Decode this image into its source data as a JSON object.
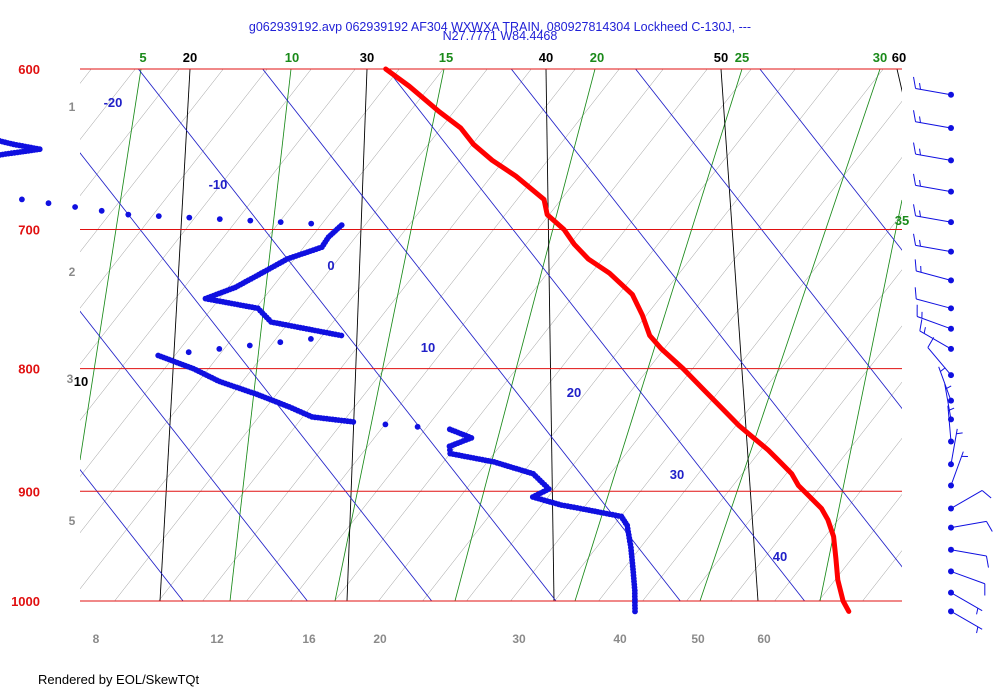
{
  "header": {
    "title_line1": "g062939192.avp 062939192 AF304 WXWXA TRAIN, 080927814304 Lockheed C-130J, ---",
    "title_line2": "N27.7771 W84.4468"
  },
  "footer": {
    "text": "Rendered by EOL/SkewTQt"
  },
  "colors": {
    "pressure_lines": "#e01010",
    "isotherms": "#2020c8",
    "dry_adiabats": "#000000",
    "moist_adiabats": "#1a8a1a",
    "mixing_ratio": "#8a8a8a",
    "temperature_trace": "#ff0000",
    "dewpoint_trace": "#1010e0",
    "wind_barbs": "#1010e0"
  },
  "chart_data": {
    "type": "skew-t",
    "pressure_levels": [
      "600",
      "700",
      "800",
      "900",
      "1000"
    ],
    "isotherm_labels": [
      "-20",
      "-10",
      "0",
      "10",
      "20",
      "30",
      "40"
    ],
    "dry_adiabat_labels": [
      "20",
      "30",
      "40",
      "50",
      "60"
    ],
    "moist_adiabat_labels": [
      "5",
      "10",
      "15",
      "20",
      "25",
      "30",
      "35"
    ],
    "mixing_ratio_labels": [
      "8",
      "12",
      "16",
      "20",
      "30",
      "40",
      "50",
      "60"
    ],
    "left_side_labels": [
      "1",
      "2",
      "3",
      "10",
      "5"
    ],
    "temperature_trace": [
      [
        1010,
        22.9
      ],
      [
        1000,
        23.1
      ],
      [
        980,
        24.0
      ],
      [
        960,
        25.2
      ],
      [
        940,
        26.4
      ],
      [
        925,
        27.0
      ],
      [
        915,
        27.2
      ],
      [
        905,
        27.0
      ],
      [
        895,
        26.8
      ],
      [
        885,
        27.0
      ],
      [
        875,
        26.8
      ],
      [
        865,
        26.6
      ],
      [
        855,
        26.2
      ],
      [
        845,
        25.8
      ],
      [
        830,
        25.5
      ],
      [
        815,
        25.2
      ],
      [
        800,
        24.9
      ],
      [
        785,
        24.4
      ],
      [
        775,
        24.3
      ],
      [
        760,
        25.0
      ],
      [
        745,
        25.5
      ],
      [
        730,
        25.0
      ],
      [
        720,
        24.2
      ],
      [
        710,
        24.0
      ],
      [
        700,
        24.1
      ],
      [
        690,
        23.7
      ],
      [
        680,
        24.4
      ],
      [
        665,
        23.6
      ],
      [
        655,
        22.7
      ],
      [
        645,
        22.2
      ],
      [
        635,
        22.2
      ],
      [
        625,
        21.5
      ],
      [
        610,
        20.7
      ],
      [
        600,
        19.9
      ]
    ],
    "dewpoint_trace": [
      [
        1010,
        5.7
      ],
      [
        990,
        7.0
      ],
      [
        970,
        8.2
      ],
      [
        950,
        9.4
      ],
      [
        930,
        10.5
      ],
      [
        922,
        10.6
      ],
      [
        915,
        7.8
      ],
      [
        912,
        6.5
      ],
      [
        905,
        4.7
      ],
      [
        898,
        6.5
      ],
      [
        885,
        6.2
      ],
      [
        875,
        3.8
      ],
      [
        868,
        0.8
      ],
      [
        862,
        1.2
      ],
      [
        855,
        3.5
      ],
      [
        848,
        2.3
      ],
      [
        842,
        -5.0
      ],
      [
        838,
        -8.0
      ],
      [
        830,
        -9.2
      ],
      [
        820,
        -11.0
      ],
      [
        810,
        -13.2
      ],
      [
        800,
        -14.5
      ],
      [
        790,
        -16.5
      ],
      [
        775,
        -0.5
      ],
      [
        765,
        -5.3
      ],
      [
        755,
        -5.5
      ],
      [
        748,
        -9.1
      ],
      [
        740,
        -6.0
      ],
      [
        730,
        -3.0
      ],
      [
        720,
        0.0
      ],
      [
        712,
        3.5
      ],
      [
        705,
        4.7
      ],
      [
        697,
        6.5
      ],
      [
        690,
        -10.0
      ],
      [
        680,
        -17.6
      ],
      [
        670,
        -24.0
      ],
      [
        660,
        -24.7
      ],
      [
        655,
        -20.0
      ],
      [
        650,
        -15.0
      ],
      [
        648,
        -13.0
      ],
      [
        645,
        -14.8
      ],
      [
        640,
        -17.0
      ]
    ],
    "wind_barbs": [
      [
        615,
        280,
        15
      ],
      [
        635,
        280,
        15
      ],
      [
        655,
        280,
        15
      ],
      [
        675,
        280,
        15
      ],
      [
        695,
        280,
        15
      ],
      [
        715,
        280,
        15
      ],
      [
        735,
        285,
        15
      ],
      [
        755,
        285,
        10
      ],
      [
        770,
        290,
        15
      ],
      [
        785,
        300,
        15
      ],
      [
        805,
        320,
        10
      ],
      [
        825,
        340,
        5
      ],
      [
        840,
        350,
        5
      ],
      [
        858,
        355,
        5
      ],
      [
        877,
        10,
        5
      ],
      [
        895,
        20,
        5
      ],
      [
        915,
        60,
        10
      ],
      [
        932,
        80,
        10
      ],
      [
        952,
        100,
        10
      ],
      [
        972,
        110,
        10
      ],
      [
        992,
        120,
        5
      ],
      [
        1010,
        120,
        5
      ]
    ]
  }
}
